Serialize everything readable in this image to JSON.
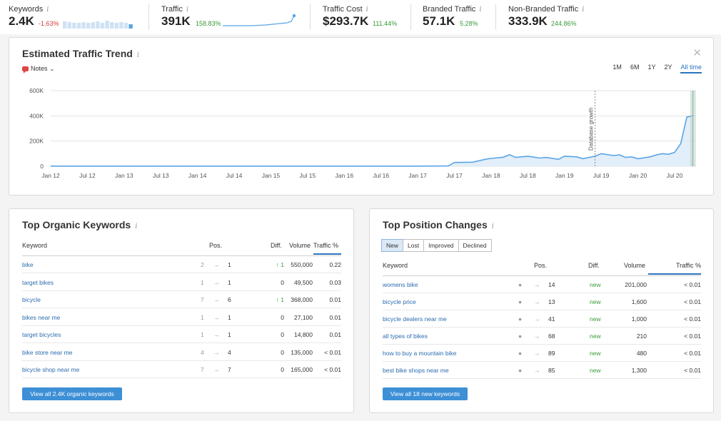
{
  "metrics": [
    {
      "label": "Keywords",
      "value": "2.4K",
      "change": "-1.63%",
      "change_dir": "neg"
    },
    {
      "label": "Traffic",
      "value": "391K",
      "change": "158.83%",
      "change_dir": "pos"
    },
    {
      "label": "Traffic Cost",
      "value": "$293.7K",
      "change": "111.44%",
      "change_dir": "pos"
    },
    {
      "label": "Branded Traffic",
      "value": "57.1K",
      "change": "5.28%",
      "change_dir": "pos"
    },
    {
      "label": "Non-Branded Traffic",
      "value": "333.9K",
      "change": "244.86%",
      "change_dir": "pos"
    }
  ],
  "info_icon": "i",
  "trend": {
    "title": "Estimated Traffic Trend",
    "notes_label": "Notes",
    "ranges": [
      "1M",
      "6M",
      "1Y",
      "2Y",
      "All time"
    ],
    "active_range": "All time",
    "annotation": "Database growth"
  },
  "chart_data": {
    "type": "area",
    "ylim": [
      0,
      600000
    ],
    "yticks": [
      "600K",
      "400K",
      "200K",
      "0"
    ],
    "xticks": [
      "Jan 12",
      "Jul 12",
      "Jan 13",
      "Jul 13",
      "Jan 14",
      "Jul 14",
      "Jan 15",
      "Jul 15",
      "Jan 16",
      "Jul 16",
      "Jan 17",
      "Jul 17",
      "Jan 18",
      "Jul 18",
      "Jan 19",
      "Jul 19",
      "Jan 20",
      "Jul 20"
    ],
    "x": [
      "Jan 12",
      "Jan 17",
      "Jun 17",
      "Jul 17",
      "Oct 17",
      "Dec 17",
      "Jan 18",
      "Mar 18",
      "Apr 18",
      "May 18",
      "Jul 18",
      "Sep 18",
      "Oct 18",
      "Dec 18",
      "Jan 19",
      "Mar 19",
      "Apr 19",
      "Jun 19",
      "Jul 19",
      "Sep 19",
      "Oct 19",
      "Nov 19",
      "Dec 19",
      "Jan 20",
      "Mar 20",
      "Apr 20",
      "May 20",
      "Jun 20",
      "Jul 20",
      "Aug 20",
      "Sep 20",
      "Oct 20"
    ],
    "values": [
      1000,
      1000,
      2000,
      30000,
      32000,
      55000,
      62000,
      72000,
      92000,
      70000,
      80000,
      65000,
      70000,
      55000,
      80000,
      75000,
      60000,
      80000,
      100000,
      85000,
      90000,
      70000,
      75000,
      60000,
      75000,
      90000,
      100000,
      95000,
      110000,
      180000,
      390000,
      400000
    ],
    "annotation_x": "Jun 19",
    "grid": true
  },
  "organic": {
    "title": "Top Organic Keywords",
    "headers": {
      "keyword": "Keyword",
      "pos": "Pos.",
      "diff": "Diff.",
      "volume": "Volume",
      "traffic": "Traffic %"
    },
    "rows": [
      {
        "keyword": "bike",
        "prev": "2",
        "pos": "1",
        "diff": "↑ 1",
        "volume": "550,000",
        "traffic": "0.22"
      },
      {
        "keyword": "target bikes",
        "prev": "1",
        "pos": "1",
        "diff": "0",
        "volume": "49,500",
        "traffic": "0.03"
      },
      {
        "keyword": "bicycle",
        "prev": "7",
        "pos": "6",
        "diff": "↑ 1",
        "volume": "368,000",
        "traffic": "0.01"
      },
      {
        "keyword": "bikes near me",
        "prev": "1",
        "pos": "1",
        "diff": "0",
        "volume": "27,100",
        "traffic": "0.01"
      },
      {
        "keyword": "target bicycles",
        "prev": "1",
        "pos": "1",
        "diff": "0",
        "volume": "14,800",
        "traffic": "0.01"
      },
      {
        "keyword": "bike store near me",
        "prev": "4",
        "pos": "4",
        "diff": "0",
        "volume": "135,000",
        "traffic": "< 0.01"
      },
      {
        "keyword": "bicycle shop near me",
        "prev": "7",
        "pos": "7",
        "diff": "0",
        "volume": "165,000",
        "traffic": "< 0.01"
      }
    ],
    "button": "View all 2.4K organic keywords"
  },
  "changes": {
    "title": "Top Position Changes",
    "tabs": [
      "New",
      "Lost",
      "Improved",
      "Declined"
    ],
    "active_tab": "New",
    "headers": {
      "keyword": "Keyword",
      "pos": "Pos.",
      "diff": "Diff.",
      "volume": "Volume",
      "traffic": "Traffic %"
    },
    "rows": [
      {
        "keyword": "womens bike",
        "pos": "14",
        "diff": "new",
        "volume": "201,000",
        "traffic": "< 0.01"
      },
      {
        "keyword": "bicycle price",
        "pos": "13",
        "diff": "new",
        "volume": "1,600",
        "traffic": "< 0.01"
      },
      {
        "keyword": "bicycle dealers near me",
        "pos": "41",
        "diff": "new",
        "volume": "1,000",
        "traffic": "< 0.01"
      },
      {
        "keyword": "all types of bikes",
        "pos": "68",
        "diff": "new",
        "volume": "210",
        "traffic": "< 0.01"
      },
      {
        "keyword": "how to buy a mountain bike",
        "pos": "89",
        "diff": "new",
        "volume": "480",
        "traffic": "< 0.01"
      },
      {
        "keyword": "best bike shops near me",
        "pos": "85",
        "diff": "new",
        "volume": "1,300",
        "traffic": "< 0.01"
      }
    ],
    "button": "View all 18 new keywords"
  },
  "colors": {
    "accent": "#2b74c2",
    "line": "#5aa4e6",
    "area": "#dbeaf8",
    "positive": "#3a9a3a",
    "negative": "#d33b3b",
    "button": "#3d8fd6"
  },
  "icons": {
    "notes": "speech-bubble-icon",
    "close": "close-icon",
    "arrow": "arrow-right-icon",
    "dot": "dot-icon",
    "caret": "chevron-down-icon"
  }
}
